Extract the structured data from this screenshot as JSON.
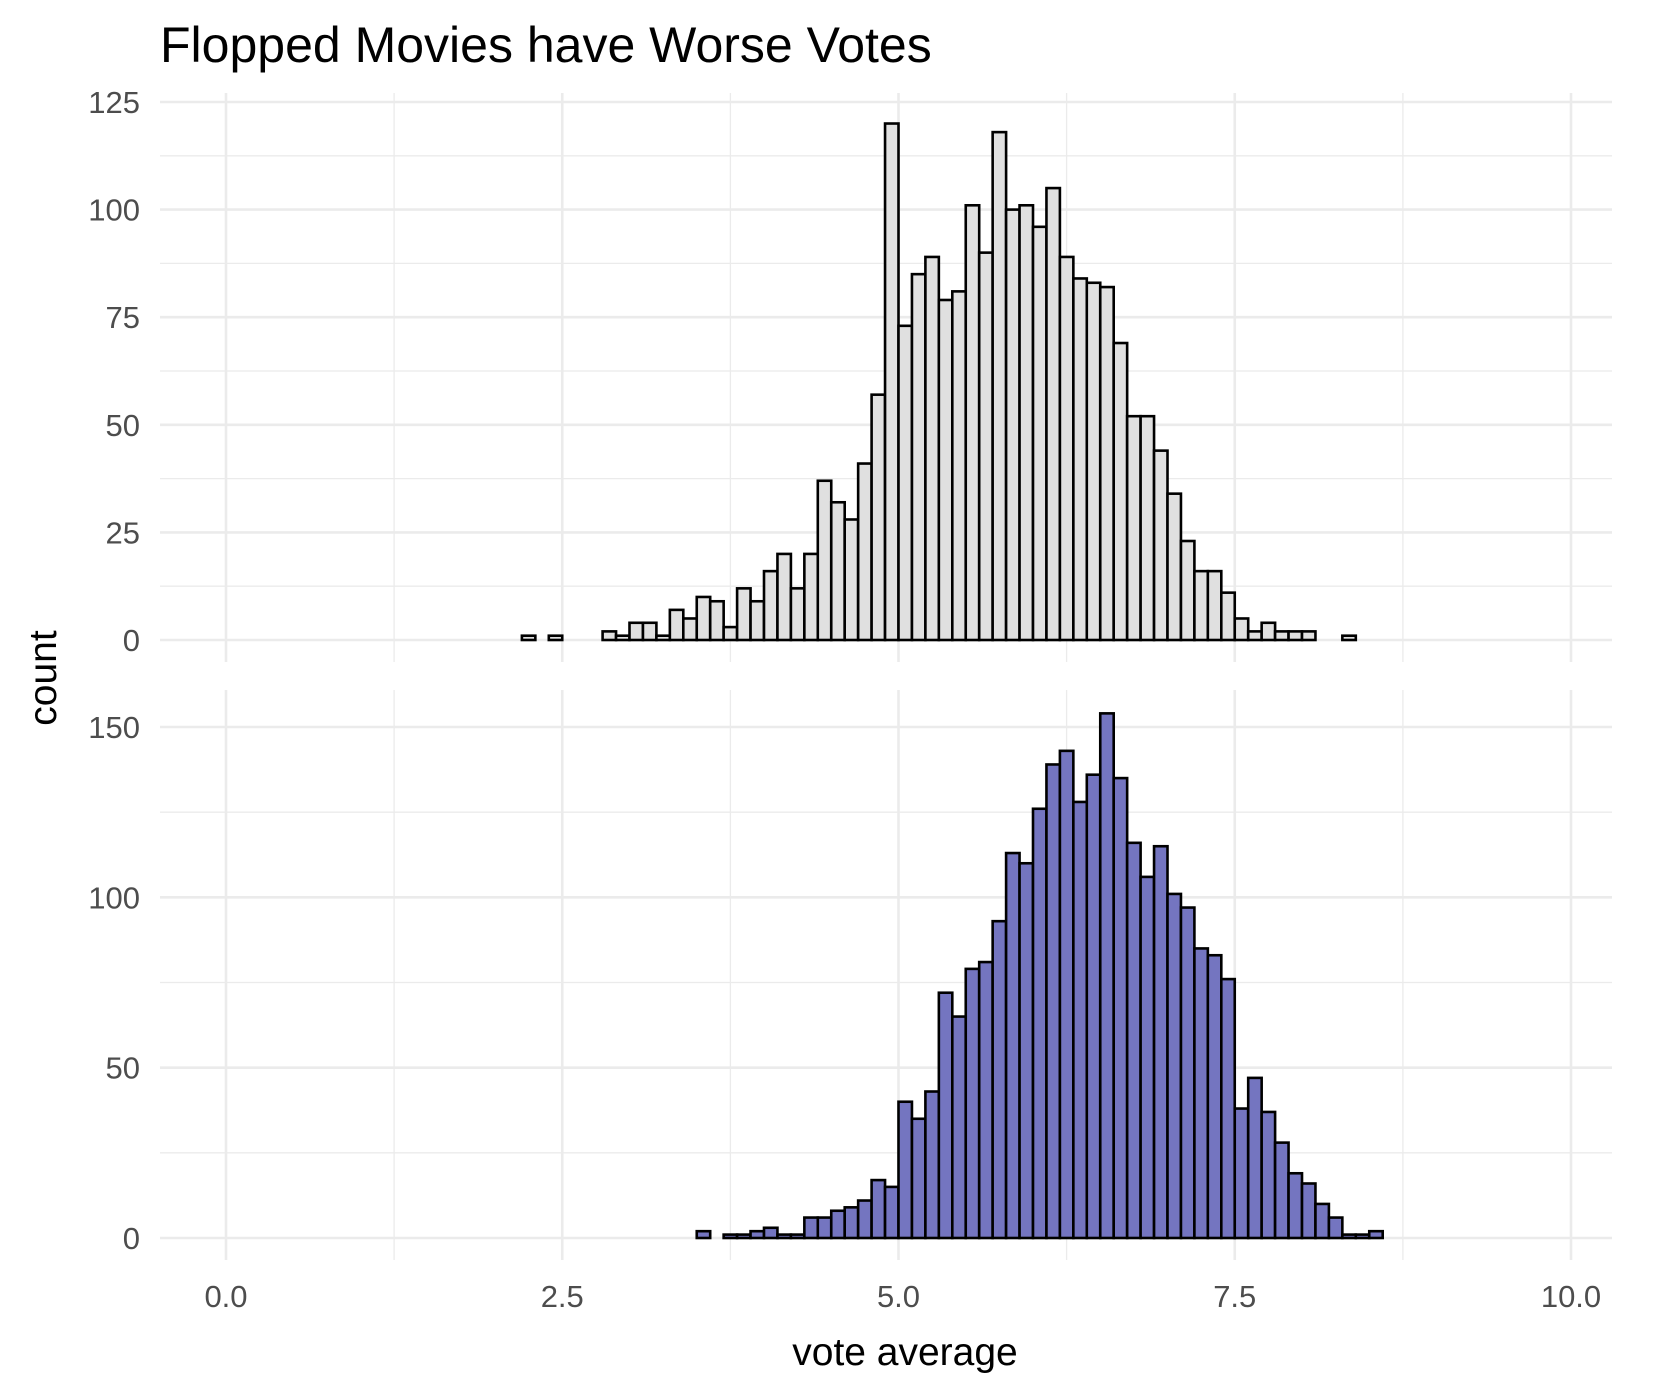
{
  "chart_data": {
    "type": "bar",
    "title": "Flopped Movies have Worse Votes",
    "xlabel": "vote average",
    "ylabel": "count",
    "binwidth": 0.1,
    "xlim": [
      0,
      10
    ],
    "x_ticks": [
      0.0,
      2.5,
      5.0,
      7.5,
      10.0
    ],
    "x_tick_labels": [
      "0.0",
      "2.5",
      "5.0",
      "7.5",
      "10.0"
    ],
    "grid": true,
    "legend": "none",
    "panels": [
      {
        "id": "top",
        "fill": "#e0e0e0",
        "ylim": [
          0,
          125
        ],
        "y_ticks": [
          0,
          25,
          50,
          75,
          100,
          125
        ],
        "y_tick_labels": [
          "0",
          "25",
          "50",
          "75",
          "100",
          "125"
        ],
        "x": [
          0.0,
          0.1,
          0.2,
          0.3,
          0.4,
          0.5,
          0.6,
          0.7,
          0.8,
          0.9,
          1.0,
          1.1,
          1.2,
          1.3,
          1.4,
          1.5,
          1.6,
          1.7,
          1.8,
          1.9,
          2.0,
          2.1,
          2.2,
          2.3,
          2.4,
          2.5,
          2.6,
          2.7,
          2.8,
          2.9,
          3.0,
          3.1,
          3.2,
          3.3,
          3.4,
          3.5,
          3.6,
          3.7,
          3.8,
          3.9,
          4.0,
          4.1,
          4.2,
          4.3,
          4.4,
          4.5,
          4.6,
          4.7,
          4.8,
          4.9,
          5.0,
          5.1,
          5.2,
          5.3,
          5.4,
          5.5,
          5.6,
          5.7,
          5.8,
          5.9,
          6.0,
          6.1,
          6.2,
          6.3,
          6.4,
          6.5,
          6.6,
          6.7,
          6.8,
          6.9,
          7.0,
          7.1,
          7.2,
          7.3,
          7.4,
          7.5,
          7.6,
          7.7,
          7.8,
          7.9,
          8.0,
          8.1,
          8.2,
          8.3,
          8.4,
          8.5,
          8.6,
          8.7,
          8.8,
          8.9,
          9.0,
          9.1,
          9.2,
          9.3,
          9.4,
          9.5,
          9.6,
          9.7,
          9.8,
          9.9
        ],
        "values": [
          0,
          0,
          0,
          0,
          0,
          0,
          0,
          0,
          0,
          0,
          0,
          0,
          0,
          0,
          0,
          0,
          0,
          0,
          0,
          0,
          0,
          0,
          1,
          0,
          1,
          0,
          0,
          0,
          2,
          1,
          4,
          4,
          1,
          7,
          5,
          10,
          9,
          3,
          12,
          9,
          16,
          20,
          12,
          20,
          37,
          32,
          28,
          41,
          57,
          120,
          73,
          85,
          89,
          79,
          81,
          101,
          90,
          118,
          100,
          101,
          96,
          105,
          89,
          84,
          83,
          82,
          69,
          52,
          52,
          44,
          34,
          23,
          16,
          16,
          11,
          5,
          2,
          4,
          2,
          2,
          2,
          0,
          0,
          1,
          0,
          0,
          0,
          0,
          0,
          0,
          0,
          0,
          0,
          0,
          0,
          0,
          0,
          0,
          0,
          0
        ]
      },
      {
        "id": "bottom",
        "fill": "#7475c0",
        "ylim": [
          0,
          155
        ],
        "y_ticks": [
          0,
          50,
          100,
          150
        ],
        "y_tick_labels": [
          "0",
          "50",
          "100",
          "150"
        ],
        "x": [
          0.0,
          0.1,
          0.2,
          0.3,
          0.4,
          0.5,
          0.6,
          0.7,
          0.8,
          0.9,
          1.0,
          1.1,
          1.2,
          1.3,
          1.4,
          1.5,
          1.6,
          1.7,
          1.8,
          1.9,
          2.0,
          2.1,
          2.2,
          2.3,
          2.4,
          2.5,
          2.6,
          2.7,
          2.8,
          2.9,
          3.0,
          3.1,
          3.2,
          3.3,
          3.4,
          3.5,
          3.6,
          3.7,
          3.8,
          3.9,
          4.0,
          4.1,
          4.2,
          4.3,
          4.4,
          4.5,
          4.6,
          4.7,
          4.8,
          4.9,
          5.0,
          5.1,
          5.2,
          5.3,
          5.4,
          5.5,
          5.6,
          5.7,
          5.8,
          5.9,
          6.0,
          6.1,
          6.2,
          6.3,
          6.4,
          6.5,
          6.6,
          6.7,
          6.8,
          6.9,
          7.0,
          7.1,
          7.2,
          7.3,
          7.4,
          7.5,
          7.6,
          7.7,
          7.8,
          7.9,
          8.0,
          8.1,
          8.2,
          8.3,
          8.4,
          8.5,
          8.6,
          8.7,
          8.8,
          8.9,
          9.0,
          9.1,
          9.2,
          9.3,
          9.4,
          9.5,
          9.6,
          9.7,
          9.8,
          9.9
        ],
        "values": [
          0,
          0,
          0,
          0,
          0,
          0,
          0,
          0,
          0,
          0,
          0,
          0,
          0,
          0,
          0,
          0,
          0,
          0,
          0,
          0,
          0,
          0,
          0,
          0,
          0,
          0,
          0,
          0,
          0,
          0,
          0,
          0,
          0,
          0,
          0,
          2,
          0,
          1,
          1,
          2,
          3,
          1,
          1,
          6,
          6,
          8,
          9,
          11,
          17,
          15,
          40,
          35,
          43,
          72,
          65,
          79,
          81,
          93,
          113,
          110,
          126,
          139,
          143,
          128,
          136,
          154,
          135,
          116,
          106,
          115,
          101,
          97,
          85,
          83,
          76,
          38,
          47,
          37,
          28,
          19,
          16,
          10,
          6,
          1,
          1,
          2,
          0,
          0,
          0,
          0,
          0,
          0,
          0,
          0,
          0,
          0,
          0,
          0,
          0,
          0
        ]
      }
    ]
  }
}
